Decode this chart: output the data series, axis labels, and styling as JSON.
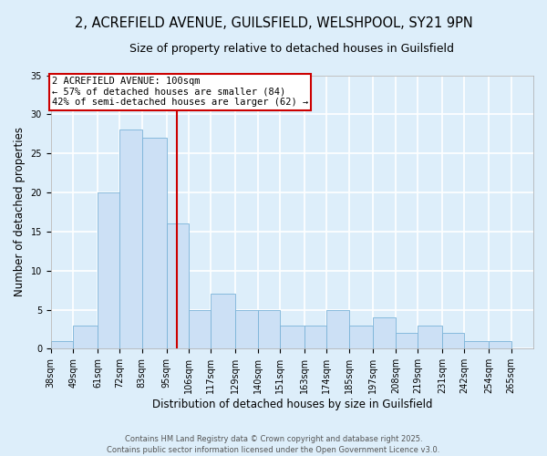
{
  "title": "2, ACREFIELD AVENUE, GUILSFIELD, WELSHPOOL, SY21 9PN",
  "subtitle": "Size of property relative to detached houses in Guilsfield",
  "xlabel": "Distribution of detached houses by size in Guilsfield",
  "ylabel": "Number of detached properties",
  "bin_labels": [
    "38sqm",
    "49sqm",
    "61sqm",
    "72sqm",
    "83sqm",
    "95sqm",
    "106sqm",
    "117sqm",
    "129sqm",
    "140sqm",
    "151sqm",
    "163sqm",
    "174sqm",
    "185sqm",
    "197sqm",
    "208sqm",
    "219sqm",
    "231sqm",
    "242sqm",
    "254sqm",
    "265sqm"
  ],
  "bin_edges": [
    38,
    49,
    61,
    72,
    83,
    95,
    106,
    117,
    129,
    140,
    151,
    163,
    174,
    185,
    197,
    208,
    219,
    231,
    242,
    254,
    265
  ],
  "counts": [
    1,
    3,
    20,
    28,
    27,
    16,
    5,
    7,
    5,
    5,
    3,
    3,
    5,
    3,
    4,
    2,
    3,
    2,
    1,
    1,
    0
  ],
  "bar_color": "#cce0f5",
  "bar_edge_color": "#7ab3d8",
  "vline_x": 100,
  "vline_color": "#cc0000",
  "annotation_line1": "2 ACREFIELD AVENUE: 100sqm",
  "annotation_line2": "← 57% of detached houses are smaller (84)",
  "annotation_line3": "42% of semi-detached houses are larger (62) →",
  "annotation_box_color": "#cc0000",
  "ylim": [
    0,
    35
  ],
  "yticks": [
    0,
    5,
    10,
    15,
    20,
    25,
    30,
    35
  ],
  "footer1": "Contains HM Land Registry data © Crown copyright and database right 2025.",
  "footer2": "Contains public sector information licensed under the Open Government Licence v3.0.",
  "bg_color": "#ddeefa",
  "plot_bg_color": "#ddeefa",
  "grid_color": "#ffffff",
  "title_fontsize": 10.5,
  "subtitle_fontsize": 9,
  "axis_label_fontsize": 8.5,
  "tick_fontsize": 7,
  "annotation_fontsize": 7.5,
  "footer_fontsize": 6
}
